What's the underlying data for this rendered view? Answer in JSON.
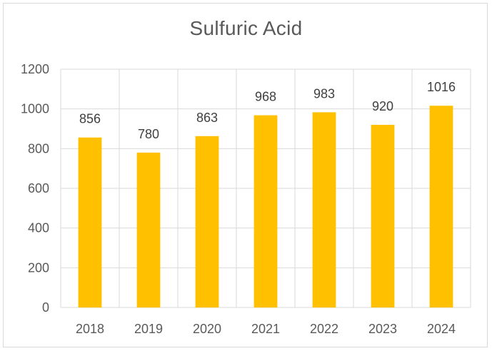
{
  "chart_data": {
    "type": "bar",
    "title": "Sulfuric Acid",
    "xlabel": "",
    "ylabel": "",
    "categories": [
      "2018",
      "2019",
      "2020",
      "2021",
      "2022",
      "2023",
      "2024"
    ],
    "values": [
      856,
      780,
      863,
      968,
      983,
      920,
      1016
    ],
    "data_labels": [
      "856",
      "780",
      "863",
      "968",
      "983",
      "920",
      "1016"
    ],
    "ylim": [
      0,
      1200
    ],
    "yticks": [
      0,
      200,
      400,
      600,
      800,
      1000,
      1200
    ],
    "ytick_labels": [
      "0",
      "200",
      "400",
      "600",
      "800",
      "1000",
      "1200"
    ],
    "grid": true,
    "legend": "none",
    "bar_color": "#FFC000",
    "grid_color": "#d9d9d9"
  }
}
